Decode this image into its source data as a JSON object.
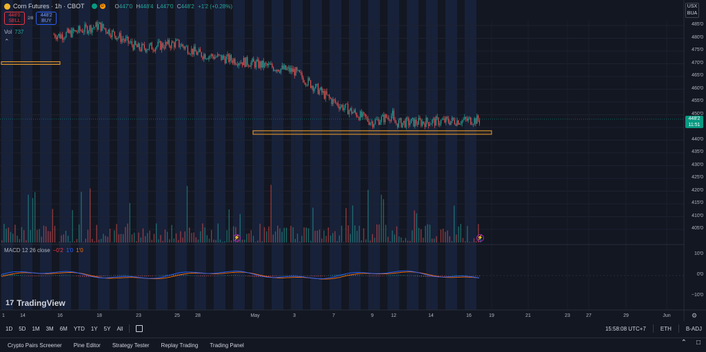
{
  "header": {
    "title": "Corn Futures · 1h · CBOT",
    "open_label": "O",
    "open": "447'0",
    "high_label": "H",
    "high": "448'4",
    "low_label": "L",
    "low": "447'0",
    "close_label": "C",
    "close": "448'2",
    "change": "+1'2 (+0.28%)",
    "market_dot_color": "#089981",
    "delay_dot_color": "#ff9800",
    "delay_letter": "D"
  },
  "trade": {
    "sell_price": "448'0",
    "sell_label": "SELL",
    "spread": "2/8",
    "buy_price": "448'2",
    "buy_label": "BUY"
  },
  "volume_legend": {
    "label": "Vol",
    "value": "737"
  },
  "macd_legend": {
    "label": "MACD 12 26 close",
    "hist": "−0'2",
    "macd": "1'0",
    "signal": "1'0"
  },
  "logo": {
    "text": "TradingView"
  },
  "price_axis": {
    "unit": "USX",
    "sub": "BUA",
    "ticks": [
      "485'0",
      "480'0",
      "475'0",
      "470'0",
      "465'0",
      "460'0",
      "455'0",
      "450'0",
      "445'0",
      "440'0",
      "435'0",
      "430'0",
      "425'0",
      "420'0",
      "415'0",
      "410'0",
      "405'0"
    ],
    "last_price": "448'2",
    "countdown": "11:51",
    "macd_ticks": [
      "10'0",
      "0'0",
      "−10'0"
    ]
  },
  "time_axis": {
    "labels": [
      "1",
      "14",
      "16",
      "18",
      "23",
      "25",
      "28",
      "May",
      "3",
      "7",
      "9",
      "12",
      "14",
      "16",
      "19",
      "21",
      "23",
      "27",
      "29",
      "Jun"
    ]
  },
  "range_bar": {
    "buttons": [
      "1D",
      "5D",
      "1M",
      "3M",
      "6M",
      "YTD",
      "1Y",
      "5Y",
      "All"
    ],
    "clock": "15:58:08 UTC+7",
    "session": "ETH",
    "adjust": "B-ADJ"
  },
  "bottom_bar": {
    "tabs": [
      "Crypto Pairs Screener",
      "Pine Editor",
      "Strategy Tester",
      "Replay Trading",
      "Trading Panel"
    ]
  },
  "colors": {
    "background": "#131722",
    "session_highlight": "#1a2541",
    "up": "#26a69a",
    "down": "#ef5350",
    "zone": "#f0a030",
    "macd_line": "#2962ff",
    "signal_line": "#ff6d00"
  },
  "chart_data": {
    "type": "candlestick",
    "ylim": [
      400,
      488
    ],
    "zones": [
      {
        "from_label": "1",
        "to_label": "16",
        "price_top": 470.8,
        "price_bottom": 470.0
      },
      {
        "from_label": "May",
        "to_label": "19",
        "price_top": 443.7,
        "price_bottom": 442.3
      }
    ],
    "close_path": [
      [
        "1",
        486
      ],
      [
        "14",
        484
      ],
      [
        "16",
        481
      ],
      [
        "18",
        485
      ],
      [
        "23",
        476
      ],
      [
        "25",
        478
      ],
      [
        "28",
        474
      ],
      [
        "May",
        470
      ],
      [
        "3",
        467
      ],
      [
        "7",
        455
      ],
      [
        "9",
        447
      ],
      [
        "12",
        450
      ],
      [
        "14",
        441
      ],
      [
        "16",
        448
      ]
    ]
  }
}
